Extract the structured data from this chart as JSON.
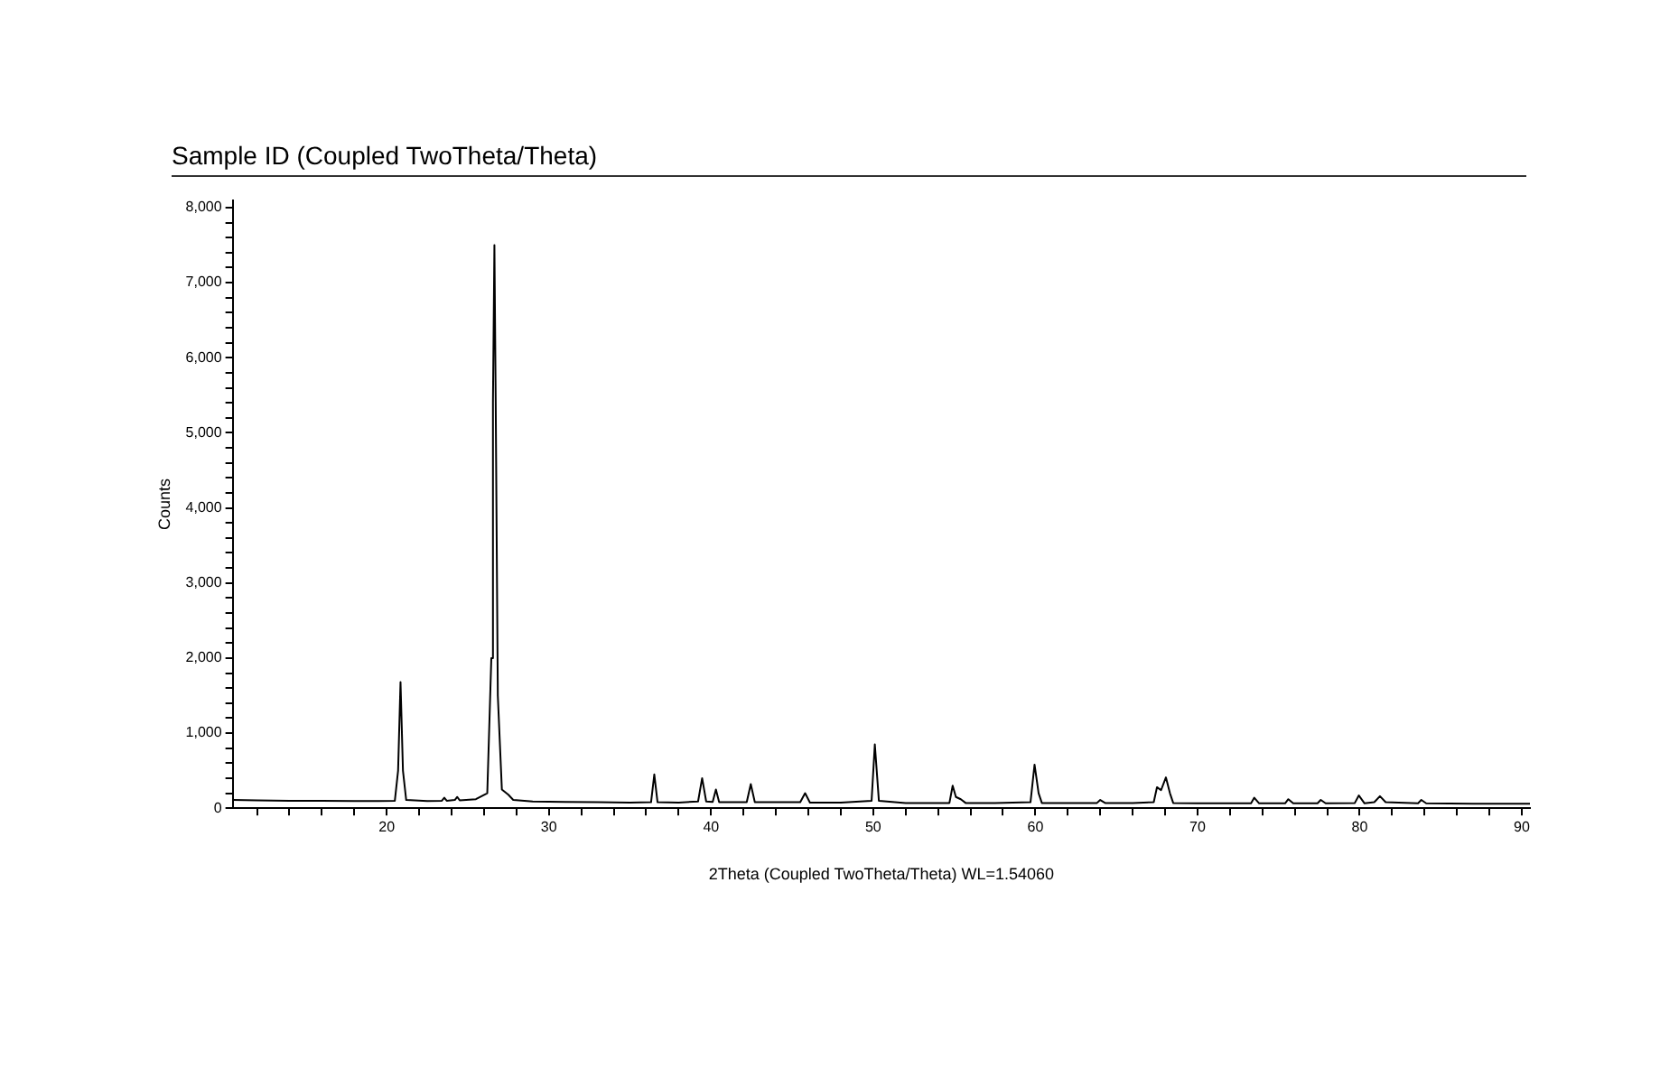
{
  "chart_data": {
    "type": "line",
    "title": "Sample ID (Coupled TwoTheta/Theta)",
    "xlabel": "2Theta (Coupled TwoTheta/Theta) WL=1.54060",
    "ylabel": "Counts",
    "x": [
      10.5,
      12,
      14,
      16,
      18,
      19.5,
      20.5,
      20.7,
      20.85,
      21.0,
      21.2,
      22.5,
      23.4,
      23.55,
      23.7,
      24.2,
      24.35,
      24.5,
      25.5,
      26.2,
      26.45,
      26.55,
      26.64,
      26.72,
      26.85,
      27.1,
      27.5,
      27.8,
      29,
      31,
      33,
      35,
      36.3,
      36.5,
      36.7,
      38,
      39.2,
      39.45,
      39.7,
      40.1,
      40.3,
      40.5,
      42.2,
      42.45,
      42.7,
      45.5,
      45.8,
      46.1,
      48,
      49.9,
      50.1,
      50.35,
      52,
      54.7,
      54.9,
      55.1,
      55.4,
      55.7,
      57.5,
      59.7,
      59.95,
      60.2,
      60.4,
      63.8,
      64.0,
      64.3,
      66,
      67.3,
      67.5,
      67.75,
      68.05,
      68.3,
      68.5,
      70,
      73.3,
      73.5,
      73.8,
      75.4,
      75.6,
      75.9,
      77.4,
      77.6,
      77.9,
      79.7,
      79.95,
      80.3,
      80.9,
      81.25,
      81.6,
      83.6,
      83.8,
      84.1,
      87,
      90.5
    ],
    "values": [
      110,
      105,
      100,
      98,
      95,
      95,
      100,
      500,
      1680,
      500,
      110,
      95,
      100,
      140,
      100,
      110,
      150,
      105,
      120,
      200,
      2000,
      5400,
      7500,
      5400,
      1500,
      250,
      180,
      110,
      90,
      85,
      80,
      75,
      80,
      450,
      80,
      75,
      90,
      400,
      90,
      85,
      250,
      80,
      80,
      320,
      80,
      80,
      200,
      75,
      75,
      100,
      850,
      100,
      70,
      70,
      300,
      150,
      120,
      70,
      70,
      80,
      580,
      200,
      70,
      70,
      110,
      70,
      70,
      80,
      280,
      240,
      410,
      200,
      70,
      65,
      65,
      140,
      65,
      65,
      120,
      65,
      65,
      110,
      65,
      70,
      170,
      65,
      80,
      160,
      80,
      65,
      110,
      65,
      60,
      60
    ],
    "color": "#000000",
    "marker": "none",
    "line_style": "solid",
    "grid": false,
    "legend": false,
    "xlim": [
      10.5,
      90.5
    ],
    "xticks": [
      {
        "value": 12,
        "label": null
      },
      {
        "value": 14,
        "label": null
      },
      {
        "value": 16,
        "label": null
      },
      {
        "value": 18,
        "label": null
      },
      20,
      {
        "value": 22,
        "label": null
      },
      {
        "value": 24,
        "label": null
      },
      {
        "value": 26,
        "label": null
      },
      {
        "value": 28,
        "label": null
      },
      30,
      {
        "value": 32,
        "label": null
      },
      {
        "value": 34,
        "label": null
      },
      {
        "value": 36,
        "label": null
      },
      {
        "value": 38,
        "label": null
      },
      40,
      {
        "value": 42,
        "label": null
      },
      {
        "value": 44,
        "label": null
      },
      {
        "value": 46,
        "label": null
      },
      {
        "value": 48,
        "label": null
      },
      50,
      {
        "value": 52,
        "label": null
      },
      {
        "value": 54,
        "label": null
      },
      {
        "value": 56,
        "label": null
      },
      {
        "value": 58,
        "label": null
      },
      60,
      {
        "value": 62,
        "label": null
      },
      {
        "value": 64,
        "label": null
      },
      {
        "value": 66,
        "label": null
      },
      {
        "value": 68,
        "label": null
      },
      70,
      {
        "value": 72,
        "label": null
      },
      {
        "value": 74,
        "label": null
      },
      {
        "value": 76,
        "label": null
      },
      {
        "value": 78,
        "label": null
      },
      80,
      {
        "value": 82,
        "label": null
      },
      {
        "value": 84,
        "label": null
      },
      {
        "value": 86,
        "label": null
      },
      {
        "value": 88,
        "label": null
      },
      90
    ],
    "ylim": [
      0,
      8100
    ],
    "yticks": [
      0,
      {
        "value": 200,
        "label": null
      },
      {
        "value": 400,
        "label": null
      },
      {
        "value": 600,
        "label": null
      },
      {
        "value": 800,
        "label": null
      },
      {
        "value": 1000,
        "label": "1,000"
      },
      {
        "value": 1200,
        "label": null
      },
      {
        "value": 1400,
        "label": null
      },
      {
        "value": 1600,
        "label": null
      },
      {
        "value": 1800,
        "label": null
      },
      {
        "value": 2000,
        "label": "2,000"
      },
      {
        "value": 2200,
        "label": null
      },
      {
        "value": 2400,
        "label": null
      },
      {
        "value": 2600,
        "label": null
      },
      {
        "value": 2800,
        "label": null
      },
      {
        "value": 3000,
        "label": "3,000"
      },
      {
        "value": 3200,
        "label": null
      },
      {
        "value": 3400,
        "label": null
      },
      {
        "value": 3600,
        "label": null
      },
      {
        "value": 3800,
        "label": null
      },
      {
        "value": 4000,
        "label": "4,000"
      },
      {
        "value": 4200,
        "label": null
      },
      {
        "value": 4400,
        "label": null
      },
      {
        "value": 4600,
        "label": null
      },
      {
        "value": 4800,
        "label": null
      },
      {
        "value": 5000,
        "label": "5,000"
      },
      {
        "value": 5200,
        "label": null
      },
      {
        "value": 5400,
        "label": null
      },
      {
        "value": 5600,
        "label": null
      },
      {
        "value": 5800,
        "label": null
      },
      {
        "value": 6000,
        "label": "6,000"
      },
      {
        "value": 6200,
        "label": null
      },
      {
        "value": 6400,
        "label": null
      },
      {
        "value": 6600,
        "label": null
      },
      {
        "value": 6800,
        "label": null
      },
      {
        "value": 7000,
        "label": "7,000"
      },
      {
        "value": 7200,
        "label": null
      },
      {
        "value": 7400,
        "label": null
      },
      {
        "value": 7600,
        "label": null
      },
      {
        "value": 7800,
        "label": null
      },
      {
        "value": 8000,
        "label": "8,000"
      }
    ]
  }
}
